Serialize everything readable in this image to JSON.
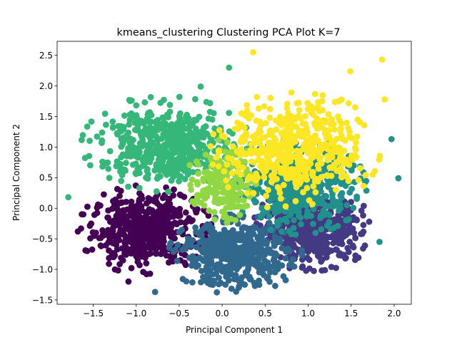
{
  "chart_data": {
    "type": "scatter",
    "title": "kmeans_clustering Clustering PCA Plot K=7",
    "xlabel": "Principal Component 1",
    "ylabel": "Principal Component 2",
    "xlim": [
      -1.92,
      2.2
    ],
    "ylim": [
      -1.57,
      2.73
    ],
    "x_ticks": [
      "−1.5",
      "−1.0",
      "−0.5",
      "0.0",
      "0.5",
      "1.0",
      "1.5",
      "2.0"
    ],
    "x_tick_values": [
      -1.5,
      -1.0,
      -0.5,
      0.0,
      0.5,
      1.0,
      1.5,
      2.0
    ],
    "y_ticks": [
      "−1.5",
      "−1.0",
      "−0.5",
      "0.0",
      "0.5",
      "1.0",
      "1.5",
      "2.0",
      "2.5"
    ],
    "y_tick_values": [
      -1.5,
      -1.0,
      -0.5,
      0.0,
      0.5,
      1.0,
      1.5,
      2.0,
      2.5
    ],
    "grid": false,
    "legend": "none",
    "colormap": "viridis",
    "clusters": [
      {
        "color": "#440154",
        "center": [
          -0.9,
          -0.35
        ],
        "spread": [
          0.3,
          0.28
        ]
      },
      {
        "color": "#443983",
        "center": [
          1.05,
          -0.35
        ],
        "spread": [
          0.28,
          0.26
        ]
      },
      {
        "color": "#31688e",
        "center": [
          0.15,
          -0.75
        ],
        "spread": [
          0.3,
          0.25
        ]
      },
      {
        "color": "#21918c",
        "center": [
          0.9,
          0.35
        ],
        "spread": [
          0.3,
          0.3
        ]
      },
      {
        "color": "#35b779",
        "center": [
          -0.65,
          1.05
        ],
        "spread": [
          0.38,
          0.3
        ]
      },
      {
        "color": "#90d743",
        "center": [
          0.0,
          0.4
        ],
        "spread": [
          0.16,
          0.28
        ]
      },
      {
        "color": "#fde725",
        "center": [
          0.85,
          0.95
        ],
        "spread": [
          0.38,
          0.38
        ]
      }
    ],
    "points": [
      {
        "x": -1.79,
        "y": 0.18,
        "c": 4
      },
      {
        "x": 0.36,
        "y": 2.55,
        "c": 6
      },
      {
        "x": 1.86,
        "y": 2.43,
        "c": 6
      },
      {
        "x": 1.49,
        "y": 2.24,
        "c": 6
      },
      {
        "x": 0.08,
        "y": 2.3,
        "c": 4
      },
      {
        "x": 2.05,
        "y": 0.49,
        "c": 3
      },
      {
        "x": 1.97,
        "y": 1.13,
        "c": 3
      },
      {
        "x": 1.83,
        "y": -0.55,
        "c": 3
      },
      {
        "x": -1.09,
        "y": -1.2,
        "c": 0
      },
      {
        "x": -0.78,
        "y": -1.37,
        "c": 2
      },
      {
        "x": -1.08,
        "y": 1.77,
        "c": 4
      },
      {
        "x": 1.89,
        "y": 1.78,
        "c": 6
      },
      {
        "x": 1.71,
        "y": -0.22,
        "c": 1
      },
      {
        "x": -0.25,
        "y": 1.99,
        "c": 4
      }
    ],
    "points_per_cluster": 520
  }
}
